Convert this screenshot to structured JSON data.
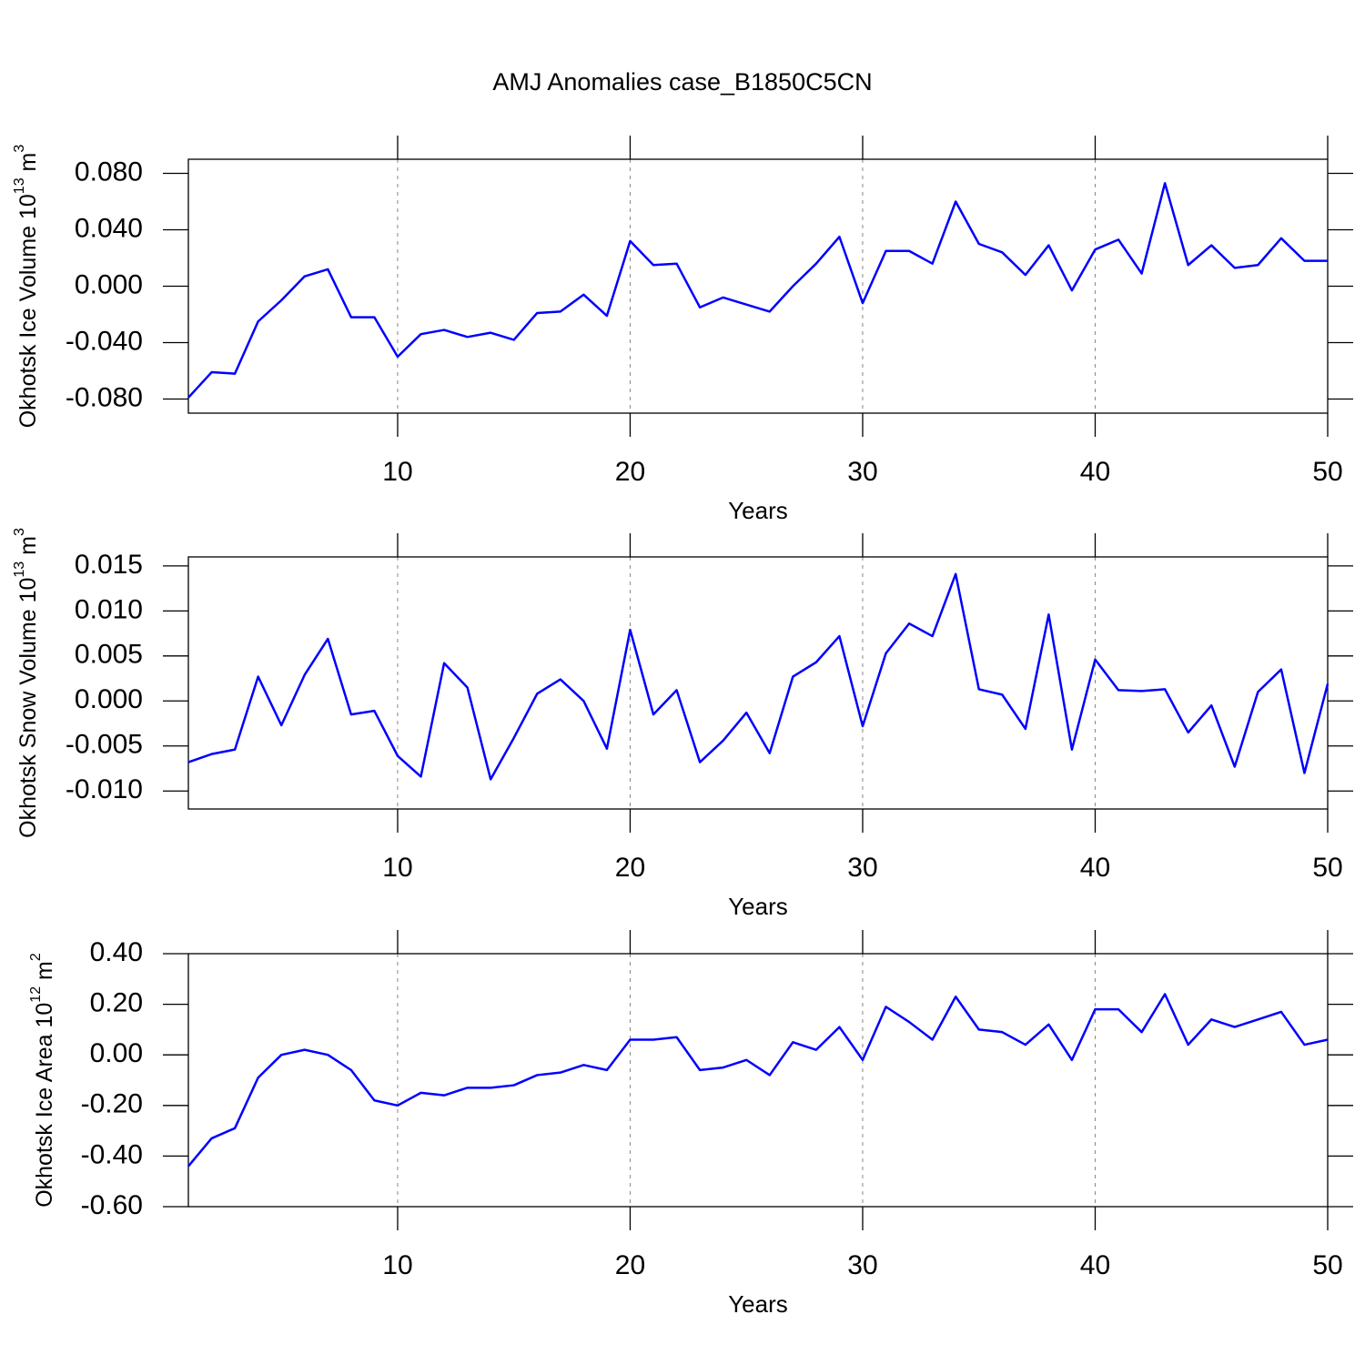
{
  "chart_data": [
    {
      "type": "line",
      "title": "AMJ Anomalies case_B1850C5CN",
      "ylabel": [
        "Okhotsk Ice Volume 10",
        "13",
        " m",
        "3"
      ],
      "xlabel": "Years",
      "x": [
        1,
        2,
        3,
        4,
        5,
        6,
        7,
        8,
        9,
        10,
        11,
        12,
        13,
        14,
        15,
        16,
        17,
        18,
        19,
        20,
        21,
        22,
        23,
        24,
        25,
        26,
        27,
        28,
        29,
        30,
        31,
        32,
        33,
        34,
        35,
        36,
        37,
        38,
        39,
        40,
        41,
        42,
        43,
        44,
        45,
        46,
        47,
        48,
        49,
        50
      ],
      "series": [
        {
          "color": "#0000ff",
          "values": [
            -0.079,
            -0.061,
            -0.062,
            -0.025,
            -0.01,
            0.007,
            0.012,
            -0.022,
            -0.022,
            -0.05,
            -0.034,
            -0.031,
            -0.036,
            -0.033,
            -0.038,
            -0.019,
            -0.018,
            -0.006,
            -0.021,
            0.032,
            0.015,
            0.016,
            -0.015,
            -0.008,
            -0.013,
            -0.018,
            0.0,
            0.016,
            0.035,
            -0.012,
            0.025,
            0.025,
            0.016,
            0.06,
            0.03,
            0.024,
            0.008,
            0.029,
            -0.003,
            0.026,
            0.033,
            0.009,
            0.073,
            0.015,
            0.029,
            0.013,
            0.015,
            0.034,
            0.018,
            0.018
          ]
        }
      ],
      "xlim": [
        1,
        50
      ],
      "xticks": [
        10,
        20,
        30,
        40,
        50
      ],
      "ylim": [
        -0.09,
        0.09
      ],
      "yticks": [
        {
          "value": -0.08,
          "label": "-0.080"
        },
        {
          "value": -0.04,
          "label": "-0.040"
        },
        {
          "value": 0,
          "label": "0.000"
        },
        {
          "value": 0.04,
          "label": "0.040"
        },
        {
          "value": 0.08,
          "label": "0.080"
        }
      ],
      "xgrid": true
    },
    {
      "type": "line",
      "ylabel": [
        "Okhotsk Snow Volume 10",
        "13",
        " m",
        "3"
      ],
      "xlabel": "Years",
      "x": [
        1,
        2,
        3,
        4,
        5,
        6,
        7,
        8,
        9,
        10,
        11,
        12,
        13,
        14,
        15,
        16,
        17,
        18,
        19,
        20,
        21,
        22,
        23,
        24,
        25,
        26,
        27,
        28,
        29,
        30,
        31,
        32,
        33,
        34,
        35,
        36,
        37,
        38,
        39,
        40,
        41,
        42,
        43,
        44,
        45,
        46,
        47,
        48,
        49,
        50
      ],
      "series": [
        {
          "color": "#0000ff",
          "values": [
            -0.0068,
            -0.0059,
            -0.0054,
            0.0027,
            -0.0027,
            0.0029,
            0.0069,
            -0.0015,
            -0.0011,
            -0.0061,
            -0.0084,
            0.0042,
            0.0015,
            -0.0087,
            -0.0041,
            0.0008,
            0.0024,
            0.0,
            -0.0053,
            0.0079,
            -0.0015,
            0.0012,
            -0.0068,
            -0.0044,
            -0.0013,
            -0.0058,
            0.0027,
            0.0043,
            0.0072,
            -0.0028,
            0.0053,
            0.0086,
            0.0072,
            0.0141,
            0.0013,
            0.0007,
            -0.0031,
            0.0096,
            -0.0054,
            0.0046,
            0.0012,
            0.0011,
            0.0013,
            -0.0035,
            -0.0005,
            -0.0073,
            0.001,
            0.0035,
            -0.008,
            0.0019
          ]
        }
      ],
      "xlim": [
        1,
        50
      ],
      "xticks": [
        10,
        20,
        30,
        40,
        50
      ],
      "ylim": [
        -0.012,
        0.016
      ],
      "yticks": [
        {
          "value": -0.01,
          "label": "-0.010"
        },
        -0.005,
        {
          "value": 0,
          "label": "0.000"
        },
        0.005,
        {
          "value": 0.01,
          "label": "0.010"
        },
        0.015
      ],
      "xgrid": true
    },
    {
      "type": "line",
      "ylabel": [
        "Okhotsk Ice Area 10",
        "12",
        " m",
        "2"
      ],
      "xlabel": "Years",
      "x": [
        1,
        2,
        3,
        4,
        5,
        6,
        7,
        8,
        9,
        10,
        11,
        12,
        13,
        14,
        15,
        16,
        17,
        18,
        19,
        20,
        21,
        22,
        23,
        24,
        25,
        26,
        27,
        28,
        29,
        30,
        31,
        32,
        33,
        34,
        35,
        36,
        37,
        38,
        39,
        40,
        41,
        42,
        43,
        44,
        45,
        46,
        47,
        48,
        49,
        50
      ],
      "series": [
        {
          "color": "#0000ff",
          "values": [
            -0.44,
            -0.33,
            -0.29,
            -0.09,
            0.0,
            0.02,
            0.0,
            -0.06,
            -0.18,
            -0.2,
            -0.15,
            -0.16,
            -0.13,
            -0.13,
            -0.12,
            -0.08,
            -0.07,
            -0.04,
            -0.06,
            0.06,
            0.06,
            0.07,
            -0.06,
            -0.05,
            -0.02,
            -0.08,
            0.05,
            0.02,
            0.11,
            -0.02,
            0.19,
            0.13,
            0.06,
            0.23,
            0.1,
            0.09,
            0.04,
            0.12,
            -0.02,
            0.18,
            0.18,
            0.09,
            0.24,
            0.04,
            0.14,
            0.11,
            0.14,
            0.17,
            0.04,
            0.06
          ]
        }
      ],
      "xlim": [
        1,
        50
      ],
      "xticks": [
        10,
        20,
        30,
        40,
        50
      ],
      "ylim": [
        -0.6,
        0.4
      ],
      "yticks": [
        {
          "value": -0.6,
          "label": "-0.60"
        },
        {
          "value": -0.4,
          "label": "-0.40"
        },
        {
          "value": -0.2,
          "label": "-0.20"
        },
        {
          "value": 0,
          "label": "0.00"
        },
        {
          "value": 0.2,
          "label": "0.20"
        },
        {
          "value": 0.4,
          "label": "0.40"
        }
      ],
      "xgrid": true
    }
  ]
}
